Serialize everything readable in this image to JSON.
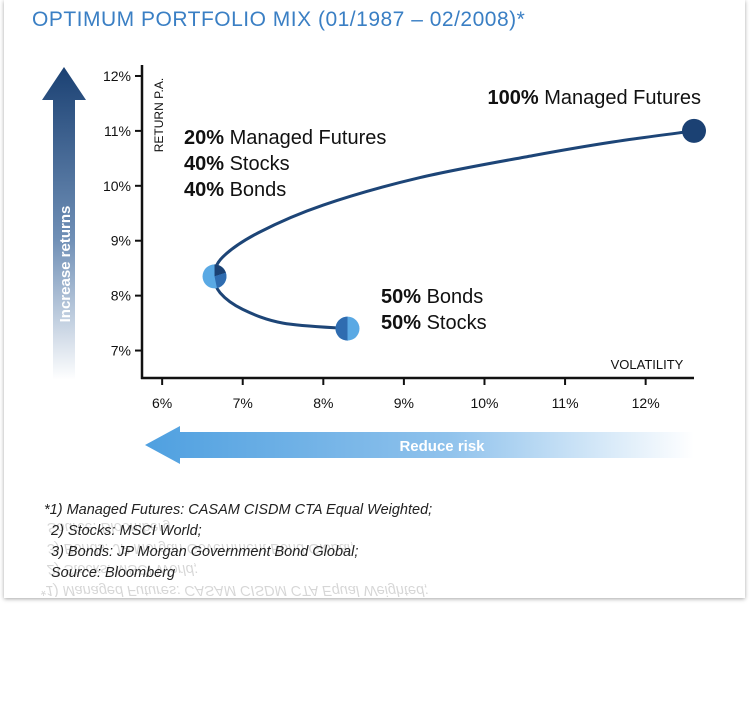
{
  "title": "OPTIMUM PORTFOLIO MIX (01/1987 – 02/2008)*",
  "arrows": {
    "up_label": "Increase returns",
    "left_label": "Reduce risk"
  },
  "colors": {
    "title": "#3a7fc4",
    "line": "#1d4577",
    "dark_blue": "#1b4173",
    "light_blue": "#5aa9e4"
  },
  "footnotes": [
    "*1) Managed Futures: CASAM CISDM CTA Equal Weighted;",
    "2) Stocks: MSCI World;",
    "3) Bonds: JP Morgan Government Bond Global;",
    "Source: Bloomberg"
  ],
  "chart_data": {
    "type": "line",
    "title": "OPTIMUM PORTFOLIO MIX (01/1987 – 02/2008)*",
    "xlabel": "VOLATILITY",
    "ylabel": "RETURN P.A.",
    "xlim": [
      5.75,
      12.6
    ],
    "ylim": [
      6.5,
      12.2
    ],
    "x_ticks": [
      "6%",
      "7%",
      "8%",
      "9%",
      "10%",
      "11%",
      "12%"
    ],
    "y_ticks": [
      "7%",
      "8%",
      "9%",
      "10%",
      "11%",
      "12%"
    ],
    "curve": {
      "x": [
        8.3,
        7.5,
        7.0,
        6.72,
        6.65,
        6.75,
        7.2,
        8.0,
        9.2,
        10.6,
        11.6,
        12.6
      ],
      "y": [
        7.4,
        7.5,
        7.75,
        8.05,
        8.35,
        8.7,
        9.15,
        9.65,
        10.15,
        10.55,
        10.8,
        11.0
      ]
    },
    "points": [
      {
        "x": 8.3,
        "y": 7.4,
        "lines": [
          {
            "bold": "50%",
            "text": " Bonds"
          },
          {
            "bold": "50%",
            "text": " Stocks"
          }
        ]
      },
      {
        "x": 6.65,
        "y": 8.35,
        "lines": [
          {
            "bold": "20%",
            "text": " Managed Futures"
          },
          {
            "bold": "40%",
            "text": " Stocks"
          },
          {
            "bold": "40%",
            "text": " Bonds"
          }
        ]
      },
      {
        "x": 12.6,
        "y": 11.0,
        "lines": [
          {
            "bold": "100%",
            "text": " Managed Futures"
          }
        ]
      }
    ]
  }
}
